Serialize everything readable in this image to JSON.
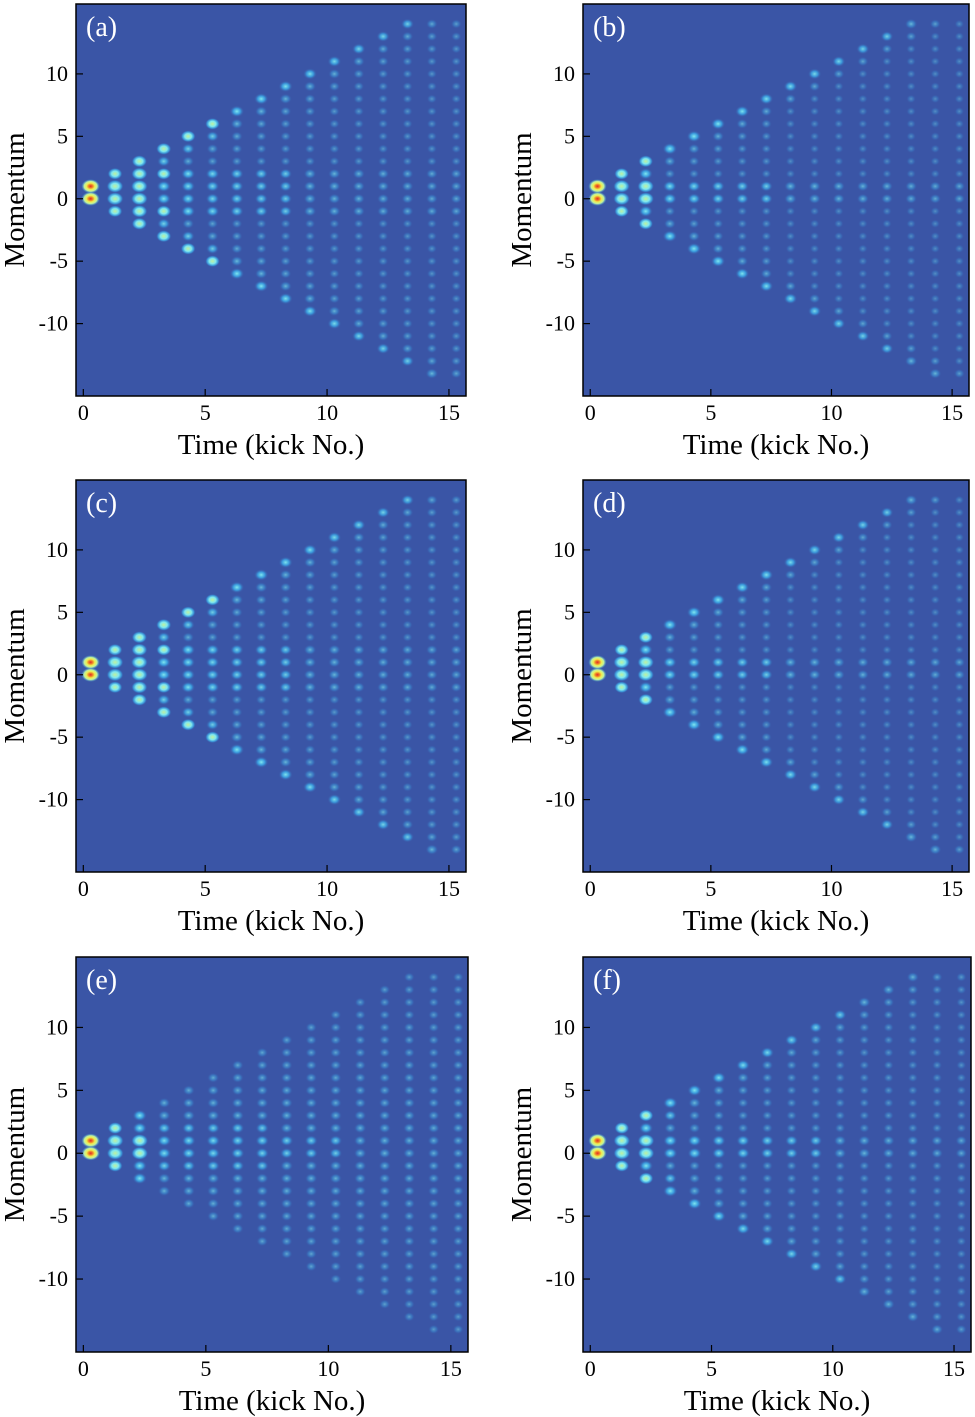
{
  "colors": {
    "background": "#3a55a6",
    "frame": "#000000",
    "label_text": "#ffffff",
    "axis_text": "#000000",
    "colormap": [
      "#3a55a6",
      "#3aa2e3",
      "#7fe8f0",
      "#bff0a0",
      "#f0f050",
      "#f08a28",
      "#e02828"
    ]
  },
  "chart_data": [
    {
      "type": "heatmap",
      "panel_label": "(a)",
      "peak_pattern": "spread",
      "xlabel": "Time (kick No.)",
      "ylabel": "Momentum",
      "xlim": [
        -0.3,
        15.7
      ],
      "ylim": [
        -15.8,
        15.6
      ],
      "x_ticks": [
        {
          "value": 0,
          "label": "0"
        },
        {
          "value": 5,
          "label": "5"
        },
        {
          "value": 10,
          "label": "10"
        },
        {
          "value": 15,
          "label": "15"
        }
      ],
      "y_ticks": [
        {
          "value": 10,
          "label": "10"
        },
        {
          "value": 5,
          "label": "5"
        },
        {
          "value": 0,
          "label": "0"
        },
        {
          "value": -5,
          "label": "-5"
        },
        {
          "value": -10,
          "label": "-10"
        }
      ]
    },
    {
      "type": "heatmap",
      "panel_label": "(b)",
      "peak_pattern": "ballistic",
      "xlabel": "Time (kick No.)",
      "ylabel": "Momentum",
      "xlim": [
        -0.3,
        15.7
      ],
      "ylim": [
        -15.8,
        15.6
      ],
      "x_ticks": [
        {
          "value": 0,
          "label": "0"
        },
        {
          "value": 5,
          "label": "5"
        },
        {
          "value": 10,
          "label": "10"
        },
        {
          "value": 15,
          "label": "15"
        }
      ],
      "y_ticks": [
        {
          "value": 10,
          "label": "10"
        },
        {
          "value": 5,
          "label": "5"
        },
        {
          "value": 0,
          "label": "0"
        },
        {
          "value": -5,
          "label": "-5"
        },
        {
          "value": -10,
          "label": "-10"
        }
      ]
    },
    {
      "type": "heatmap",
      "panel_label": "(c)",
      "peak_pattern": "spread",
      "xlabel": "Time (kick No.)",
      "ylabel": "Momentum",
      "xlim": [
        -0.3,
        15.7
      ],
      "ylim": [
        -15.8,
        15.6
      ],
      "x_ticks": [
        {
          "value": 0,
          "label": "0"
        },
        {
          "value": 5,
          "label": "5"
        },
        {
          "value": 10,
          "label": "10"
        },
        {
          "value": 15,
          "label": "15"
        }
      ],
      "y_ticks": [
        {
          "value": 10,
          "label": "10"
        },
        {
          "value": 5,
          "label": "5"
        },
        {
          "value": 0,
          "label": "0"
        },
        {
          "value": -5,
          "label": "-5"
        },
        {
          "value": -10,
          "label": "-10"
        }
      ]
    },
    {
      "type": "heatmap",
      "panel_label": "(d)",
      "peak_pattern": "ballistic",
      "xlabel": "Time (kick No.)",
      "ylabel": "Momentum",
      "xlim": [
        -0.3,
        15.7
      ],
      "ylim": [
        -15.8,
        15.6
      ],
      "x_ticks": [
        {
          "value": 0,
          "label": "0"
        },
        {
          "value": 5,
          "label": "5"
        },
        {
          "value": 10,
          "label": "10"
        },
        {
          "value": 15,
          "label": "15"
        }
      ],
      "y_ticks": [
        {
          "value": 10,
          "label": "10"
        },
        {
          "value": 5,
          "label": "5"
        },
        {
          "value": 0,
          "label": "0"
        },
        {
          "value": -5,
          "label": "-5"
        },
        {
          "value": -10,
          "label": "-10"
        }
      ]
    },
    {
      "type": "heatmap",
      "panel_label": "(e)",
      "peak_pattern": "diffuse",
      "xlabel": "Time (kick No.)",
      "ylabel": "Momentum",
      "xlim": [
        -0.3,
        15.7
      ],
      "ylim": [
        -15.8,
        15.6
      ],
      "x_ticks": [
        {
          "value": 0,
          "label": "0"
        },
        {
          "value": 5,
          "label": "5"
        },
        {
          "value": 10,
          "label": "10"
        },
        {
          "value": 15,
          "label": "15"
        }
      ],
      "y_ticks": [
        {
          "value": 10,
          "label": "10"
        },
        {
          "value": 5,
          "label": "5"
        },
        {
          "value": 0,
          "label": "0"
        },
        {
          "value": -5,
          "label": "-5"
        },
        {
          "value": -10,
          "label": "-10"
        }
      ]
    },
    {
      "type": "heatmap",
      "panel_label": "(f)",
      "peak_pattern": "ballistic-diffuse",
      "xlabel": "Time (kick No.)",
      "ylabel": "Momentum",
      "xlim": [
        -0.3,
        15.7
      ],
      "ylim": [
        -15.8,
        15.6
      ],
      "x_ticks": [
        {
          "value": 0,
          "label": "0"
        },
        {
          "value": 5,
          "label": "5"
        },
        {
          "value": 10,
          "label": "10"
        },
        {
          "value": 15,
          "label": "15"
        }
      ],
      "y_ticks": [
        {
          "value": 10,
          "label": "10"
        },
        {
          "value": 5,
          "label": "5"
        },
        {
          "value": 0,
          "label": "0"
        },
        {
          "value": -5,
          "label": "-5"
        },
        {
          "value": -10,
          "label": "-10"
        }
      ]
    }
  ]
}
